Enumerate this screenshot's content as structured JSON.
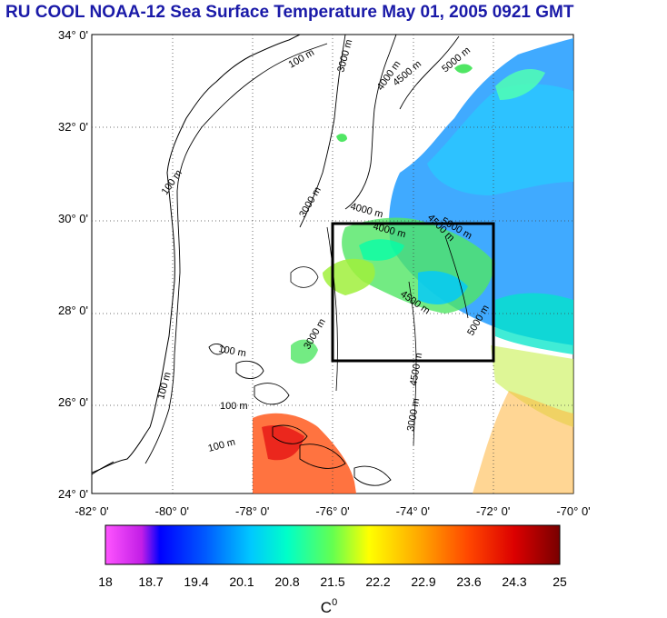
{
  "title": "RU COOL  NOAA-12 Sea Surface Temperature May 01, 2005 0921 GMT",
  "map": {
    "lat_labels": [
      "34° 0'",
      "32° 0'",
      "30° 0'",
      "28° 0'",
      "26° 0'",
      "24° 0'"
    ],
    "lon_labels": [
      "-82° 0'",
      "-80° 0'",
      "-78° 0'",
      "-76° 0'",
      "-74° 0'",
      "-72° 0'",
      "-70° 0'"
    ],
    "lat_range": [
      24,
      34
    ],
    "lon_range": [
      -82,
      -70
    ],
    "grid": "dotted",
    "study_box": {
      "lon": [
        -76,
        -72
      ],
      "lat": [
        27,
        30
      ]
    },
    "contour_labels": [
      "100 m",
      "100 m",
      "3000 m",
      "4000 m",
      "4500 m",
      "5000 m",
      "3000 m",
      "4000 m",
      "4000 m",
      "4500 m",
      "5000 m",
      "4500 m",
      "5000 m",
      "100 m",
      "100 m",
      "100 m",
      "100 m",
      "3000 m",
      "4500 m",
      "3000 m"
    ]
  },
  "colorbar": {
    "tick_labels": [
      "18",
      "18.7",
      "19.4",
      "20.1",
      "20.8",
      "21.5",
      "22.2",
      "22.9",
      "23.6",
      "24.3",
      "25"
    ],
    "unit_label": "C",
    "unit_superscript": "0",
    "min": 18,
    "max": 25,
    "colors": [
      "#ff55ff",
      "#b014e6",
      "#0000ff",
      "#0078ff",
      "#00d2ff",
      "#00ffb4",
      "#78ff3c",
      "#ffff00",
      "#ffb400",
      "#ff5000",
      "#e60000",
      "#780000"
    ]
  },
  "colors": {
    "title": "#1a1aa8",
    "land_outline": "#000000",
    "study_box": "#000000"
  }
}
